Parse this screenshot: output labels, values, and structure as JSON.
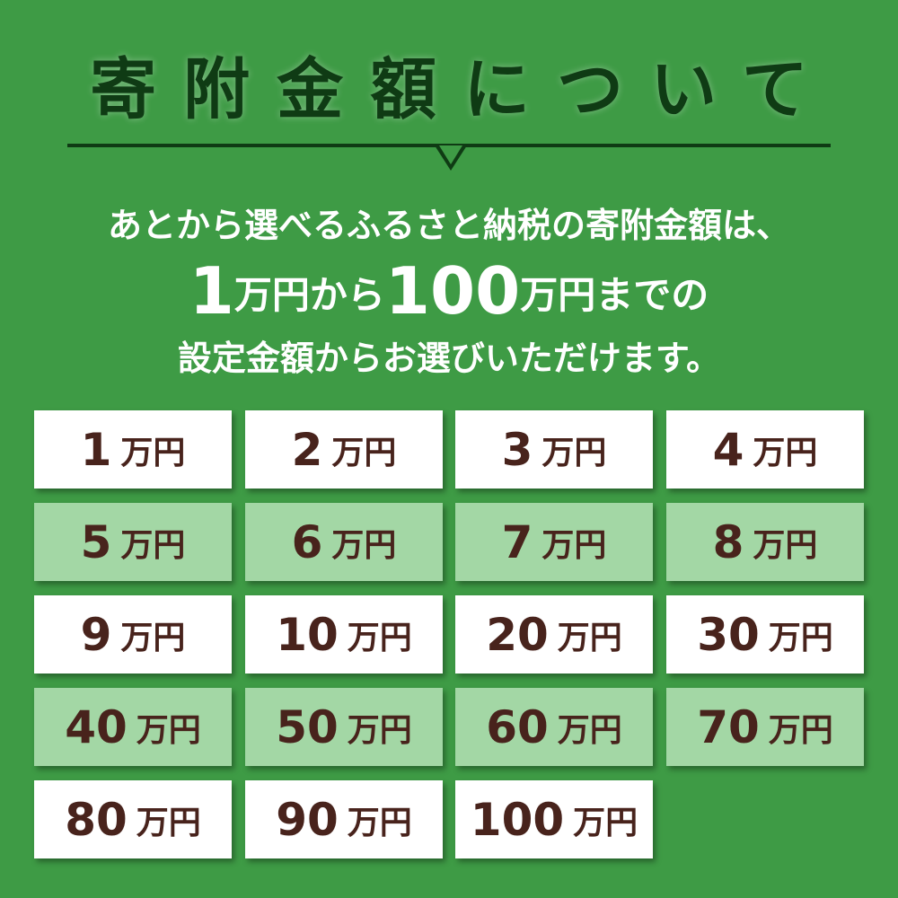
{
  "header": {
    "title": "寄附金額について"
  },
  "intro": {
    "line1": "あとから選べるふるさと納税の寄附金額は、",
    "line2": {
      "a": "1",
      "b": "万円",
      "c": "から",
      "d": "100",
      "e": "万円",
      "f": "までの"
    },
    "line3": "設定金額からお選びいただけます。"
  },
  "colors": {
    "background": "#3e9b45",
    "title": "#0f3b14",
    "card_text": "#48231c",
    "card_white": "#ffffff",
    "card_green": "#a3d7a5"
  },
  "unit": "万円",
  "amounts": [
    "1",
    "2",
    "3",
    "4",
    "5",
    "6",
    "7",
    "8",
    "9",
    "10",
    "20",
    "30",
    "40",
    "50",
    "60",
    "70",
    "80",
    "90",
    "100"
  ]
}
